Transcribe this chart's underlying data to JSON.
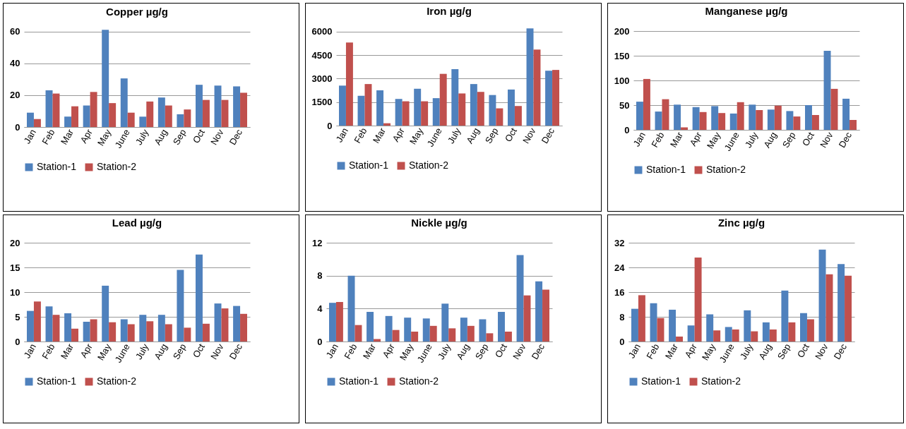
{
  "chart_data": [
    {
      "type": "bar",
      "title": "Copper µg/g",
      "categories": [
        "Jan",
        "Feb",
        "Mar",
        "Apr",
        "May",
        "June",
        "July",
        "Aug",
        "Sep",
        "Oct",
        "Nov",
        "Dec"
      ],
      "ylim": [
        0,
        62
      ],
      "yticks": [
        0,
        20,
        40,
        60
      ],
      "grid": "y",
      "legend": "bottom",
      "series": [
        {
          "name": "Station-1",
          "color": "#4f81bd",
          "values": [
            9,
            23,
            6.5,
            13.5,
            61,
            30.5,
            6.5,
            18.5,
            8,
            26.5,
            26,
            25.5
          ]
        },
        {
          "name": "Station-2",
          "color": "#c0504d",
          "values": [
            5,
            21,
            13,
            22,
            15,
            9,
            16,
            13.5,
            11,
            17,
            17,
            21.5
          ]
        }
      ]
    },
    {
      "type": "bar",
      "title": "Iron µg/g",
      "categories": [
        "Jan",
        "Feb",
        "Mar",
        "Apr",
        "May",
        "June",
        "July",
        "Aug",
        "Sep",
        "Oct",
        "Nov",
        "Dec"
      ],
      "ylim": [
        0,
        6300
      ],
      "yticks": [
        0,
        1500,
        3000,
        4500,
        6000
      ],
      "grid": "y",
      "legend": "bottom",
      "series": [
        {
          "name": "Station-1",
          "color": "#4f81bd",
          "values": [
            2550,
            1900,
            2250,
            1700,
            2350,
            1750,
            3600,
            2650,
            1950,
            2300,
            6200,
            3500
          ]
        },
        {
          "name": "Station-2",
          "color": "#c0504d",
          "values": [
            5300,
            2650,
            150,
            1550,
            1550,
            3300,
            2050,
            2150,
            1100,
            1250,
            4850,
            3550
          ]
        }
      ]
    },
    {
      "type": "bar",
      "title": "Manganese µg/g",
      "categories": [
        "Jan",
        "Feb",
        "Mar",
        "Apr",
        "May",
        "June",
        "July",
        "Aug",
        "Sep",
        "Oct",
        "Nov",
        "Dec"
      ],
      "ylim": [
        0,
        200
      ],
      "yticks": [
        0,
        50,
        100,
        150,
        200
      ],
      "grid": "y",
      "legend": "bottom",
      "series": [
        {
          "name": "Station-1",
          "color": "#4f81bd",
          "values": [
            57,
            37,
            51,
            46,
            48,
            33,
            51,
            41,
            38,
            50,
            160,
            63
          ]
        },
        {
          "name": "Station-2",
          "color": "#c0504d",
          "values": [
            103,
            62,
            5,
            36,
            34,
            56,
            40,
            49,
            27,
            30,
            83,
            20
          ]
        }
      ]
    },
    {
      "type": "bar",
      "title": "Lead µg/g",
      "categories": [
        "Jan",
        "Feb",
        "Mar",
        "Apr",
        "May",
        "June",
        "July",
        "Aug",
        "Sep",
        "Oct",
        "Nov",
        "Dec"
      ],
      "ylim": [
        0,
        20
      ],
      "yticks": [
        0,
        5,
        10,
        15,
        20
      ],
      "grid": "y",
      "legend": "bottom",
      "series": [
        {
          "name": "Station-1",
          "color": "#4f81bd",
          "values": [
            6.2,
            7.1,
            5.7,
            4.0,
            11.3,
            4.5,
            5.4,
            5.4,
            14.5,
            17.6,
            7.7,
            7.2
          ]
        },
        {
          "name": "Station-2",
          "color": "#c0504d",
          "values": [
            8.1,
            5.4,
            2.6,
            4.5,
            3.9,
            3.5,
            4.1,
            3.5,
            2.8,
            3.6,
            6.7,
            5.6
          ]
        }
      ]
    },
    {
      "type": "bar",
      "title": "Nickle µg/g",
      "categories": [
        "Jan",
        "Feb",
        "Mar",
        "Apr",
        "May",
        "June",
        "July",
        "Aug",
        "Sep",
        "Oct",
        "Nov",
        "Dec"
      ],
      "ylim": [
        0,
        12
      ],
      "yticks": [
        0,
        4,
        8,
        12
      ],
      "grid": "y",
      "legend": "bottom",
      "series": [
        {
          "name": "Station-1",
          "color": "#4f81bd",
          "values": [
            4.7,
            8.0,
            3.6,
            3.1,
            2.9,
            2.8,
            4.6,
            2.9,
            2.7,
            3.6,
            10.5,
            7.3
          ]
        },
        {
          "name": "Station-2",
          "color": "#c0504d",
          "values": [
            4.8,
            2.0,
            0.3,
            1.4,
            1.2,
            1.9,
            1.6,
            1.9,
            1.0,
            1.2,
            5.6,
            6.3
          ]
        }
      ]
    },
    {
      "type": "bar",
      "title": "Zinc µg/g",
      "categories": [
        "Jan",
        "Feb",
        "Mar",
        "Apr",
        "May",
        "June",
        "July",
        "Aug",
        "Sep",
        "Oct",
        "Nov",
        "Dec"
      ],
      "ylim": [
        0,
        32
      ],
      "yticks": [
        0,
        8,
        16,
        24,
        32
      ],
      "grid": "y",
      "legend": "bottom",
      "series": [
        {
          "name": "Station-1",
          "color": "#4f81bd",
          "values": [
            10.6,
            12.4,
            10.3,
            5.2,
            8.8,
            4.7,
            10.1,
            6.2,
            16.5,
            9.2,
            29.8,
            25.1
          ]
        },
        {
          "name": "Station-2",
          "color": "#c0504d",
          "values": [
            15.0,
            7.6,
            1.6,
            27.2,
            3.6,
            3.9,
            3.3,
            3.9,
            6.2,
            7.2,
            21.8,
            21.3
          ]
        }
      ]
    }
  ]
}
